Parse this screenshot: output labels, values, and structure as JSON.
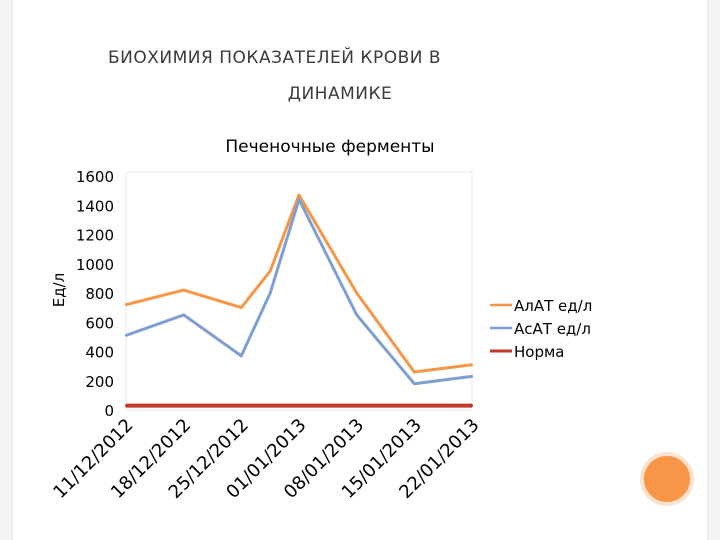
{
  "slide": {
    "title_line1": "Биохимия показателей крови в",
    "title_line2": "динамике"
  },
  "colors": {
    "alat": "#f79646",
    "asat": "#7f9fd4",
    "norm": "#c0392b",
    "accent_dot": "#f79646"
  },
  "chart_data": {
    "type": "line",
    "title": "Печеночные ферменты",
    "ylabel": "Ед/л",
    "xlabel": "",
    "categories": [
      "11/12/2012",
      "18/12/2012",
      "25/12/2012",
      "01/01/2013",
      "08/01/2013",
      "15/01/2013",
      "22/01/2013"
    ],
    "x_points": [
      0,
      1,
      2,
      2.5,
      3,
      4,
      5,
      6
    ],
    "ylim": [
      0,
      1600
    ],
    "yticks": [
      0,
      200,
      400,
      600,
      800,
      1000,
      1200,
      1400,
      1600
    ],
    "grid": false,
    "legend_position": "right",
    "series": [
      {
        "name": "АлАТ ед/л",
        "color": "#f79646",
        "x": [
          0,
          1,
          2,
          2.5,
          3,
          4,
          5,
          6
        ],
        "values": [
          720,
          820,
          700,
          950,
          1470,
          800,
          260,
          310
        ]
      },
      {
        "name": "АсАТ ед/л",
        "color": "#7f9fd4",
        "x": [
          0,
          1,
          2,
          2.5,
          3,
          4,
          5,
          6
        ],
        "values": [
          510,
          650,
          370,
          800,
          1440,
          650,
          180,
          230
        ]
      },
      {
        "name": "Норма",
        "color": "#c0392b",
        "x": [
          0,
          6
        ],
        "values": [
          30,
          30
        ]
      }
    ]
  }
}
